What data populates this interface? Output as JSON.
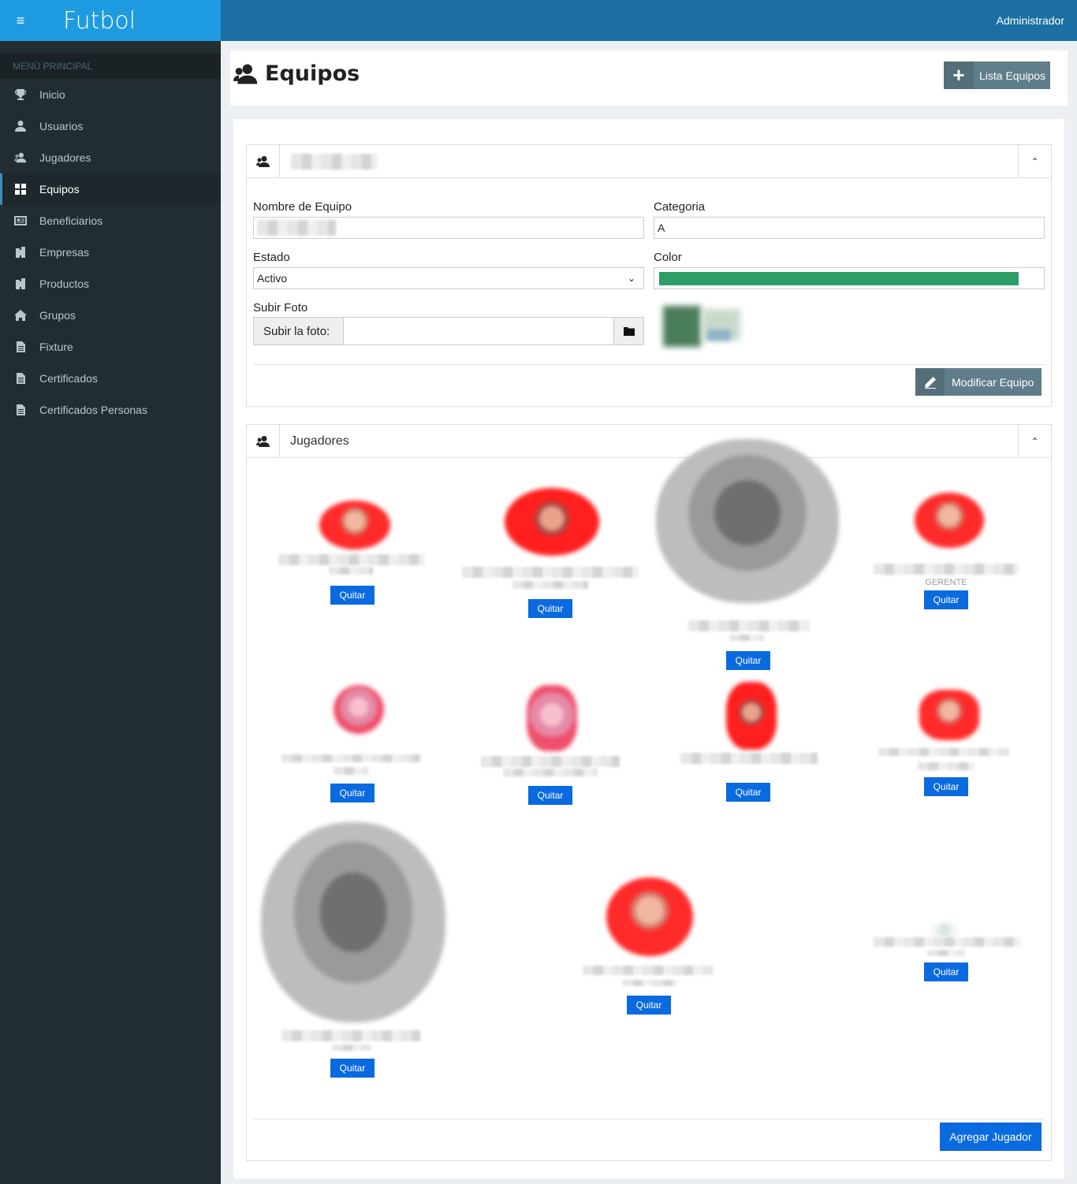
{
  "brand": {
    "title": "Futbol",
    "menu_icon": "hamburger-icon"
  },
  "topbar": {
    "user": "Administrador"
  },
  "sidebar": {
    "header": "MENÚ PRINCIPAL",
    "items": [
      {
        "label": "Inicio",
        "icon": "trophy-icon"
      },
      {
        "label": "Usuarios",
        "icon": "user-icon"
      },
      {
        "label": "Jugadores",
        "icon": "users-icon"
      },
      {
        "label": "Equipos",
        "icon": "grid-icon",
        "active": true
      },
      {
        "label": "Beneficiarios",
        "icon": "id-card-icon"
      },
      {
        "label": "Empresas",
        "icon": "building-icon"
      },
      {
        "label": "Productos",
        "icon": "building-icon"
      },
      {
        "label": "Grupos",
        "icon": "home-icon"
      },
      {
        "label": "Fixture",
        "icon": "file-icon"
      },
      {
        "label": "Certificados",
        "icon": "file-icon"
      },
      {
        "label": "Certificados Personas",
        "icon": "file-icon"
      }
    ]
  },
  "page": {
    "title": "Equipos",
    "lista_button": "Lista Equipos"
  },
  "team_form": {
    "nombre_label": "Nombre de Equipo",
    "categoria_label": "Categoria",
    "categoria_value": "A",
    "estado_label": "Estado",
    "estado_value": "Activo",
    "color_label": "Color",
    "color_value": "#2e9e66",
    "foto_label": "Subir Foto",
    "foto_prefix": "Subir la foto:",
    "modificar_button": "Modificar Equipo"
  },
  "players_panel": {
    "title": "Jugadores",
    "quitar_label": "Quitar",
    "role_gerente": "GERENTE",
    "agregar_button": "Agregar Jugador"
  },
  "colors": {
    "primary_button": "#0a6adf",
    "secondary_button": "#607d8b",
    "sidebar_bg": "#222d32",
    "topbar_bg": "#1b6fa3",
    "brand_bg": "#1e9be0"
  }
}
